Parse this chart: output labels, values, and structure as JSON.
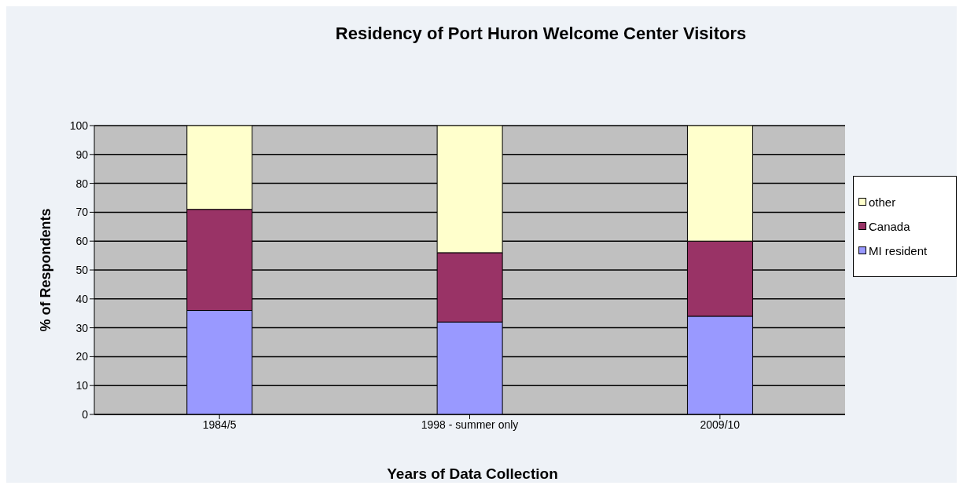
{
  "chart_data": {
    "type": "bar",
    "title": "Residency of Port Huron Welcome Center Visitors",
    "xlabel": "Years of Data Collection",
    "ylabel": "% of Respondents",
    "categories": [
      "1984/5",
      "1998 - summer only",
      "2009/10"
    ],
    "stacked": true,
    "series": [
      {
        "name": "MI resident",
        "color": "#9999ff",
        "values": [
          36,
          32,
          34
        ]
      },
      {
        "name": "Canada",
        "color": "#993366",
        "values": [
          35,
          24,
          26
        ]
      },
      {
        "name": "other",
        "color": "#ffffcc",
        "values": [
          29,
          44,
          40
        ]
      }
    ],
    "ylim": [
      0,
      100
    ],
    "yticks": [
      0,
      10,
      20,
      30,
      40,
      50,
      60,
      70,
      80,
      90,
      100
    ],
    "grid": "y",
    "legend": "right"
  }
}
